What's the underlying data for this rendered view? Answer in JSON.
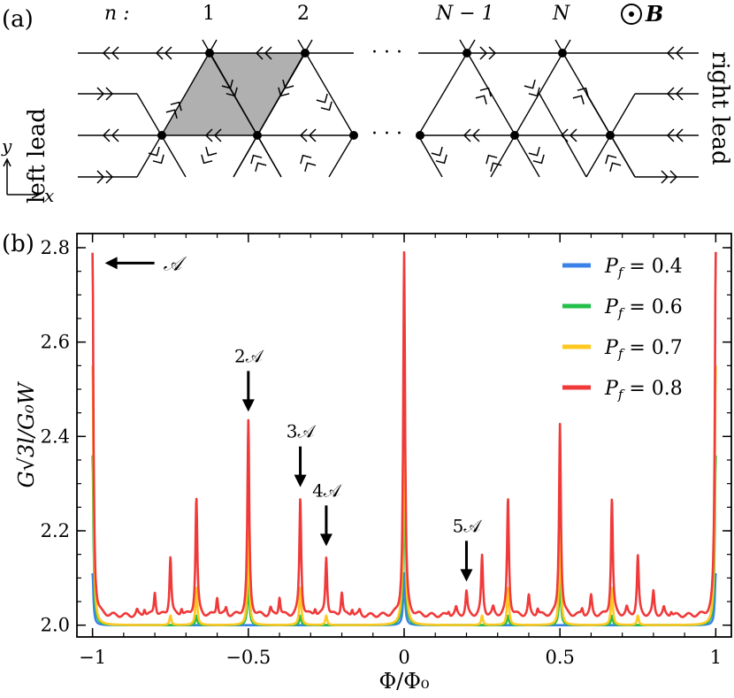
{
  "panel_a": {
    "label": "(a)",
    "n_label": "n :",
    "col_labels": [
      "1",
      "2",
      "N − 1",
      "N"
    ],
    "dots": "· · ·",
    "field_label": "B",
    "left_lead": "left lead",
    "right_lead": "right lead",
    "axis_y": "y",
    "axis_x": "x"
  },
  "panel_b": {
    "label": "(b)"
  },
  "chart_data": {
    "type": "line",
    "xlabel": "Φ/Φ₀",
    "ylabel": "G√3l/G₀W",
    "xlim": [
      -1.05,
      1.05
    ],
    "ylim": [
      1.975,
      2.83
    ],
    "xticks": [
      -1,
      -0.5,
      0,
      0.5,
      1
    ],
    "xtick_labels": [
      "−1",
      "−0.5",
      "0",
      "0.5",
      "1"
    ],
    "yticks": [
      2.0,
      2.2,
      2.4,
      2.6,
      2.8
    ],
    "ytick_labels": [
      "2.0",
      "2.2",
      "2.4",
      "2.6",
      "2.8"
    ],
    "legend_position": "top-right",
    "series": [
      {
        "name": "P_f = 0.4",
        "legend": "0.4",
        "color": "#3b82e8",
        "baseline": 2.0,
        "peaks": [
          {
            "x": 0,
            "y": 2.11
          },
          {
            "x": -1,
            "y": 2.11
          },
          {
            "x": 1,
            "y": 2.11
          }
        ]
      },
      {
        "name": "P_f = 0.6",
        "legend": "0.6",
        "color": "#22c04a",
        "baseline": 2.0,
        "peaks": [
          {
            "x": 0,
            "y": 2.36
          },
          {
            "x": -1,
            "y": 2.36
          },
          {
            "x": 1,
            "y": 2.36
          },
          {
            "x": -0.5,
            "y": 2.1
          },
          {
            "x": 0.5,
            "y": 2.1
          },
          {
            "x": -0.6667,
            "y": 2.02
          },
          {
            "x": 0.6667,
            "y": 2.02
          },
          {
            "x": -0.3333,
            "y": 2.02
          },
          {
            "x": 0.3333,
            "y": 2.02
          }
        ]
      },
      {
        "name": "P_f = 0.7",
        "legend": "0.7",
        "color": "#ffc820",
        "baseline": 2.0,
        "peaks": [
          {
            "x": 0,
            "y": 2.55
          },
          {
            "x": -1,
            "y": 2.55
          },
          {
            "x": 1,
            "y": 2.55
          },
          {
            "x": -0.5,
            "y": 2.2
          },
          {
            "x": 0.5,
            "y": 2.2
          },
          {
            "x": -0.6667,
            "y": 2.08
          },
          {
            "x": 0.6667,
            "y": 2.08
          },
          {
            "x": -0.3333,
            "y": 2.08
          },
          {
            "x": 0.3333,
            "y": 2.08
          },
          {
            "x": -0.75,
            "y": 2.02
          },
          {
            "x": 0.75,
            "y": 2.02
          },
          {
            "x": -0.25,
            "y": 2.02
          },
          {
            "x": 0.25,
            "y": 2.02
          }
        ]
      },
      {
        "name": "P_f = 0.8",
        "legend": "0.8",
        "color": "#f03a3a",
        "baseline": 2.02,
        "peaks": [
          {
            "x": 0,
            "y": 2.79
          },
          {
            "x": -1,
            "y": 2.79
          },
          {
            "x": 1,
            "y": 2.79
          },
          {
            "x": -0.5,
            "y": 2.43
          },
          {
            "x": 0.5,
            "y": 2.43
          },
          {
            "x": -0.6667,
            "y": 2.27
          },
          {
            "x": 0.6667,
            "y": 2.27
          },
          {
            "x": -0.3333,
            "y": 2.27
          },
          {
            "x": 0.3333,
            "y": 2.27
          },
          {
            "x": -0.75,
            "y": 2.145
          },
          {
            "x": 0.75,
            "y": 2.145
          },
          {
            "x": -0.25,
            "y": 2.145
          },
          {
            "x": 0.25,
            "y": 2.145
          },
          {
            "x": -0.8,
            "y": 2.07
          },
          {
            "x": 0.8,
            "y": 2.07
          },
          {
            "x": -0.2,
            "y": 2.07
          },
          {
            "x": 0.2,
            "y": 2.07
          },
          {
            "x": -0.6,
            "y": 2.06
          },
          {
            "x": 0.6,
            "y": 2.06
          },
          {
            "x": -0.4,
            "y": 2.06
          },
          {
            "x": 0.4,
            "y": 2.06
          },
          {
            "x": -0.8333,
            "y": 2.035
          },
          {
            "x": 0.8333,
            "y": 2.035
          },
          {
            "x": -0.1667,
            "y": 2.035
          },
          {
            "x": 0.1667,
            "y": 2.035
          },
          {
            "x": -0.7143,
            "y": 2.035
          },
          {
            "x": 0.7143,
            "y": 2.035
          },
          {
            "x": -0.2857,
            "y": 2.035
          },
          {
            "x": 0.2857,
            "y": 2.035
          },
          {
            "x": -0.5714,
            "y": 2.035
          },
          {
            "x": 0.5714,
            "y": 2.035
          },
          {
            "x": -0.4286,
            "y": 2.035
          },
          {
            "x": 0.4286,
            "y": 2.035
          },
          {
            "x": -0.8571,
            "y": 2.03
          },
          {
            "x": 0.8571,
            "y": 2.03
          },
          {
            "x": -0.1429,
            "y": 2.03
          },
          {
            "x": 0.1429,
            "y": 2.03
          }
        ]
      }
    ],
    "annotations": [
      {
        "text": "𝒜",
        "x": -1,
        "y": 2.79,
        "arrow": "left"
      },
      {
        "text": "2𝒜",
        "x": -0.5,
        "y": 2.43,
        "arrow": "down"
      },
      {
        "text": "3𝒜",
        "x": -0.3333,
        "y": 2.27,
        "arrow": "down"
      },
      {
        "text": "4𝒜",
        "x": -0.25,
        "y": 2.145,
        "arrow": "down"
      },
      {
        "text": "5𝒜",
        "x": 0.2,
        "y": 2.07,
        "arrow": "down"
      }
    ]
  }
}
